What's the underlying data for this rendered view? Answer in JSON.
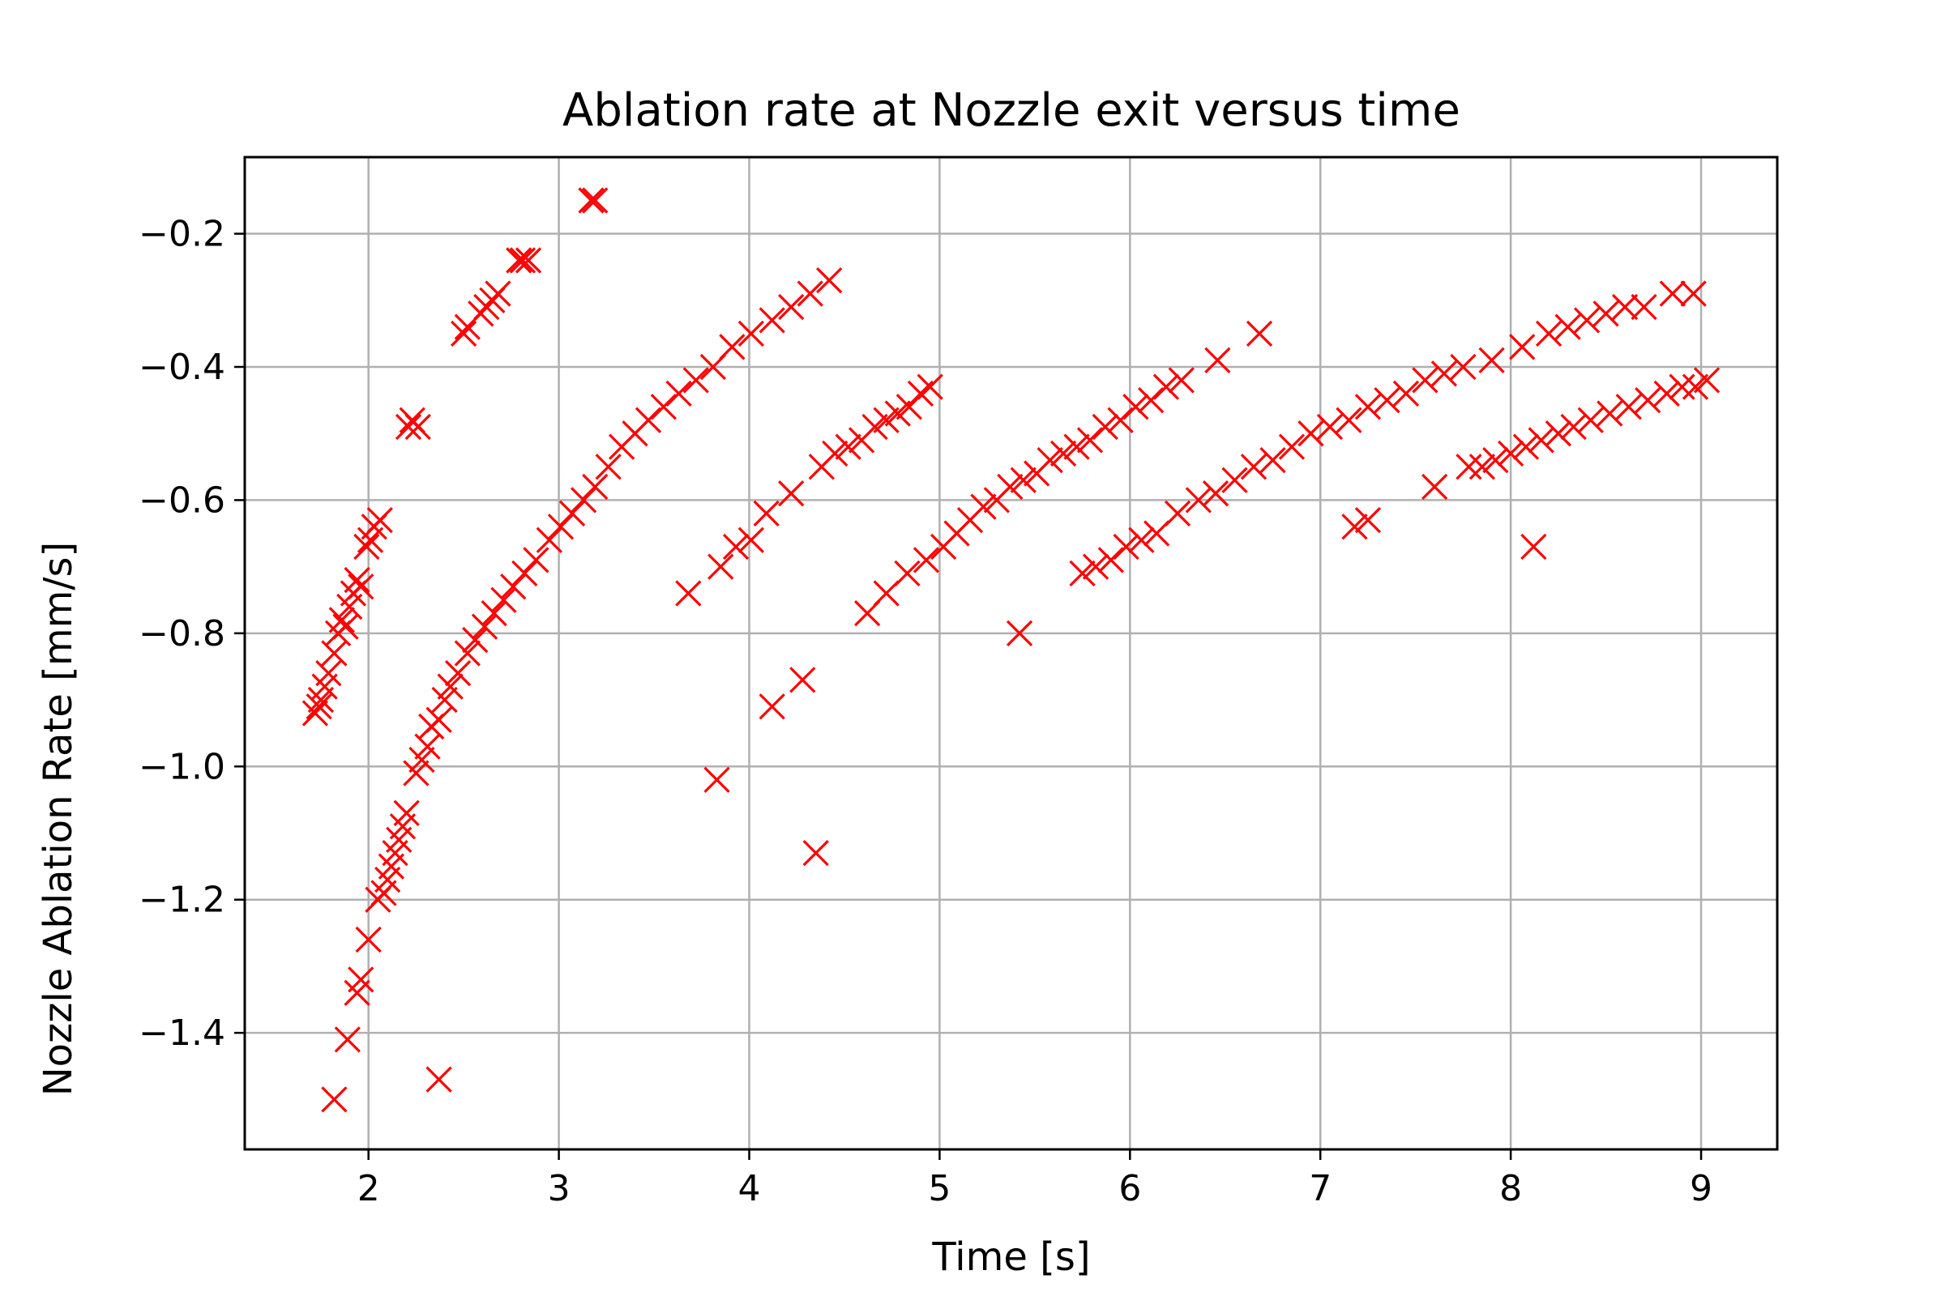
{
  "chart_data": {
    "type": "scatter",
    "title": "Ablation rate at Nozzle exit versus time",
    "xlabel": "Time [s]",
    "ylabel": "Nozzle Ablation Rate [mm/s]",
    "xlim": [
      1.35,
      9.4
    ],
    "ylim": [
      -1.575,
      -0.085
    ],
    "xticks": [
      2,
      3,
      4,
      5,
      6,
      7,
      8,
      9
    ],
    "yticks": [
      -1.4,
      -1.2,
      -1.0,
      -0.8,
      -0.6,
      -0.4,
      -0.2
    ],
    "xtick_labels": [
      "2",
      "3",
      "4",
      "5",
      "6",
      "7",
      "8",
      "9"
    ],
    "ytick_labels": [
      "−1.4",
      "−1.2",
      "−1.0",
      "−0.8",
      "−0.6",
      "−0.4",
      "−0.2"
    ],
    "grid": true,
    "marker": "x",
    "color": "#ff0000",
    "series": [
      {
        "points": [
          [
            1.72,
            -0.92
          ],
          [
            1.74,
            -0.91
          ],
          [
            1.75,
            -0.9
          ],
          [
            1.77,
            -0.88
          ],
          [
            1.79,
            -0.86
          ],
          [
            1.82,
            -0.83
          ],
          [
            1.84,
            -0.8
          ],
          [
            1.86,
            -0.78
          ],
          [
            1.88,
            -0.79
          ],
          [
            1.9,
            -0.76
          ],
          [
            1.92,
            -0.74
          ],
          [
            1.94,
            -0.72
          ],
          [
            1.96,
            -0.73
          ],
          [
            1.99,
            -0.67
          ],
          [
            2.01,
            -0.66
          ],
          [
            2.03,
            -0.64
          ],
          [
            2.06,
            -0.63
          ],
          [
            2.21,
            -0.49
          ],
          [
            2.23,
            -0.48
          ],
          [
            2.26,
            -0.49
          ],
          [
            2.5,
            -0.35
          ],
          [
            2.52,
            -0.34
          ],
          [
            2.59,
            -0.32
          ],
          [
            2.62,
            -0.31
          ],
          [
            2.65,
            -0.3
          ],
          [
            2.68,
            -0.29
          ],
          [
            2.79,
            -0.24
          ],
          [
            2.81,
            -0.24
          ],
          [
            2.84,
            -0.24
          ],
          [
            3.17,
            -0.15
          ],
          [
            3.19,
            -0.15
          ],
          [
            1.82,
            -1.5
          ],
          [
            1.89,
            -1.41
          ],
          [
            1.94,
            -1.34
          ],
          [
            1.96,
            -1.32
          ],
          [
            2.0,
            -1.26
          ],
          [
            2.05,
            -1.2
          ],
          [
            2.08,
            -1.19
          ],
          [
            2.1,
            -1.17
          ],
          [
            2.12,
            -1.15
          ],
          [
            2.14,
            -1.13
          ],
          [
            2.16,
            -1.11
          ],
          [
            2.18,
            -1.09
          ],
          [
            2.2,
            -1.07
          ],
          [
            2.25,
            -1.01
          ],
          [
            2.28,
            -0.99
          ],
          [
            2.31,
            -0.97
          ],
          [
            2.33,
            -0.94
          ],
          [
            2.37,
            -0.93
          ],
          [
            2.4,
            -0.9
          ],
          [
            2.43,
            -0.88
          ],
          [
            2.47,
            -0.86
          ],
          [
            2.52,
            -0.83
          ],
          [
            2.56,
            -0.81
          ],
          [
            2.61,
            -0.79
          ],
          [
            2.66,
            -0.77
          ],
          [
            2.71,
            -0.75
          ],
          [
            2.76,
            -0.73
          ],
          [
            2.82,
            -0.71
          ],
          [
            2.88,
            -0.69
          ],
          [
            2.95,
            -0.66
          ],
          [
            3.01,
            -0.64
          ],
          [
            3.07,
            -0.62
          ],
          [
            3.13,
            -0.6
          ],
          [
            3.19,
            -0.58
          ],
          [
            3.26,
            -0.55
          ],
          [
            3.33,
            -0.52
          ],
          [
            3.4,
            -0.5
          ],
          [
            3.47,
            -0.48
          ],
          [
            3.55,
            -0.46
          ],
          [
            3.63,
            -0.44
          ],
          [
            3.72,
            -0.42
          ],
          [
            3.81,
            -0.4
          ],
          [
            3.91,
            -0.37
          ],
          [
            4.01,
            -0.35
          ],
          [
            4.12,
            -0.33
          ],
          [
            4.22,
            -0.31
          ],
          [
            4.32,
            -0.29
          ],
          [
            4.42,
            -0.27
          ],
          [
            2.37,
            -1.47
          ],
          [
            3.68,
            -0.74
          ],
          [
            3.83,
            -1.02
          ],
          [
            3.85,
            -0.7
          ],
          [
            3.93,
            -0.67
          ],
          [
            4.01,
            -0.66
          ],
          [
            4.09,
            -0.62
          ],
          [
            4.12,
            -0.91
          ],
          [
            4.22,
            -0.59
          ],
          [
            4.28,
            -0.87
          ],
          [
            4.35,
            -1.13
          ],
          [
            4.38,
            -0.55
          ],
          [
            4.45,
            -0.53
          ],
          [
            4.52,
            -0.52
          ],
          [
            4.59,
            -0.51
          ],
          [
            4.66,
            -0.49
          ],
          [
            4.72,
            -0.48
          ],
          [
            4.78,
            -0.47
          ],
          [
            4.84,
            -0.46
          ],
          [
            4.9,
            -0.44
          ],
          [
            4.95,
            -0.43
          ],
          [
            4.62,
            -0.77
          ],
          [
            4.72,
            -0.74
          ],
          [
            4.83,
            -0.71
          ],
          [
            4.93,
            -0.69
          ],
          [
            5.02,
            -0.67
          ],
          [
            5.09,
            -0.65
          ],
          [
            5.16,
            -0.63
          ],
          [
            5.23,
            -0.61
          ],
          [
            5.3,
            -0.6
          ],
          [
            5.37,
            -0.58
          ],
          [
            5.42,
            -0.8
          ],
          [
            5.44,
            -0.57
          ],
          [
            5.51,
            -0.56
          ],
          [
            5.58,
            -0.54
          ],
          [
            5.65,
            -0.53
          ],
          [
            5.72,
            -0.52
          ],
          [
            5.79,
            -0.51
          ],
          [
            5.87,
            -0.49
          ],
          [
            5.95,
            -0.48
          ],
          [
            6.03,
            -0.46
          ],
          [
            6.11,
            -0.45
          ],
          [
            6.19,
            -0.43
          ],
          [
            6.27,
            -0.42
          ],
          [
            6.46,
            -0.39
          ],
          [
            6.68,
            -0.35
          ],
          [
            5.75,
            -0.71
          ],
          [
            5.82,
            -0.7
          ],
          [
            5.9,
            -0.69
          ],
          [
            5.98,
            -0.67
          ],
          [
            6.06,
            -0.66
          ],
          [
            6.14,
            -0.65
          ],
          [
            6.25,
            -0.62
          ],
          [
            6.36,
            -0.6
          ],
          [
            6.45,
            -0.59
          ],
          [
            6.55,
            -0.57
          ],
          [
            6.65,
            -0.55
          ],
          [
            6.75,
            -0.54
          ],
          [
            6.85,
            -0.52
          ],
          [
            6.95,
            -0.5
          ],
          [
            7.05,
            -0.49
          ],
          [
            7.15,
            -0.48
          ],
          [
            7.18,
            -0.64
          ],
          [
            7.25,
            -0.63
          ],
          [
            7.25,
            -0.46
          ],
          [
            7.35,
            -0.45
          ],
          [
            7.45,
            -0.44
          ],
          [
            7.55,
            -0.42
          ],
          [
            7.6,
            -0.58
          ],
          [
            7.65,
            -0.41
          ],
          [
            7.75,
            -0.4
          ],
          [
            7.9,
            -0.39
          ],
          [
            8.06,
            -0.37
          ],
          [
            8.12,
            -0.67
          ],
          [
            8.2,
            -0.35
          ],
          [
            8.3,
            -0.34
          ],
          [
            8.4,
            -0.33
          ],
          [
            8.5,
            -0.32
          ],
          [
            8.6,
            -0.31
          ],
          [
            8.7,
            -0.31
          ],
          [
            8.85,
            -0.29
          ],
          [
            8.96,
            -0.29
          ],
          [
            7.78,
            -0.55
          ],
          [
            7.85,
            -0.55
          ],
          [
            7.92,
            -0.54
          ],
          [
            8.0,
            -0.53
          ],
          [
            8.08,
            -0.52
          ],
          [
            8.16,
            -0.51
          ],
          [
            8.25,
            -0.5
          ],
          [
            8.33,
            -0.49
          ],
          [
            8.42,
            -0.48
          ],
          [
            8.52,
            -0.47
          ],
          [
            8.62,
            -0.46
          ],
          [
            8.72,
            -0.45
          ],
          [
            8.82,
            -0.44
          ],
          [
            8.9,
            -0.43
          ],
          [
            8.97,
            -0.43
          ],
          [
            9.03,
            -0.42
          ]
        ]
      }
    ]
  }
}
